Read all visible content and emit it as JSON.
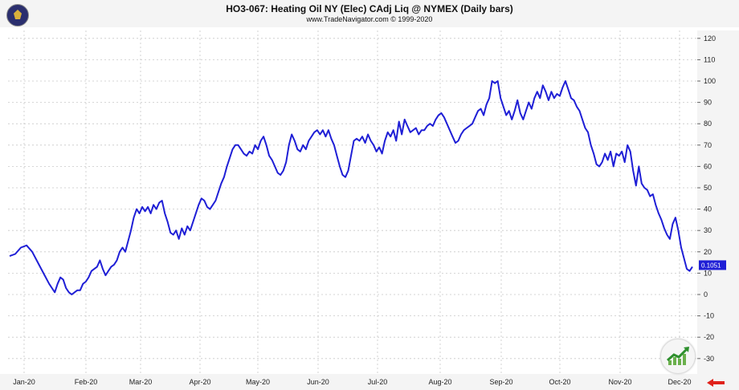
{
  "header": {
    "title": "HO3-067:  Heating Oil NY (Elec) CAdj Liq @ NYMEX  (Daily bars)",
    "subtitle": "www.TradeNavigator.com © 1999-2020"
  },
  "colors": {
    "line": "#1f1fd6",
    "badge_bg": "#1f1fd6",
    "grid": "#c8c8c8",
    "arrow": "#e0221b"
  },
  "icons": {
    "logo": "trade-navigator-logo-icon",
    "nav": "trending-up-chart-icon",
    "scroll": "left-arrow-icon"
  },
  "chart_data": {
    "type": "line",
    "title": "HO3-067:  Heating Oil NY (Elec) CAdj Liq @ NYMEX  (Daily bars)",
    "xlabel": "",
    "ylabel": "",
    "ylim": [
      -37,
      125
    ],
    "grid": true,
    "y_ticks": [
      120,
      110,
      100,
      90,
      80,
      70,
      60,
      50,
      40,
      30,
      20,
      10,
      0,
      -10,
      -20,
      -30
    ],
    "x_ticks": [
      "Jan-20",
      "Feb-20",
      "Mar-20",
      "Apr-20",
      "May-20",
      "Jun-20",
      "Jul-20",
      "Aug-20",
      "Sep-20",
      "Oct-20",
      "Nov-20",
      "Dec-20"
    ],
    "last_value_label": "0.1051",
    "series": [
      {
        "name": "",
        "points": [
          [
            0,
            18
          ],
          [
            2,
            19
          ],
          [
            4,
            22
          ],
          [
            6,
            23
          ],
          [
            8,
            20
          ],
          [
            10,
            15
          ],
          [
            12,
            10
          ],
          [
            14,
            5
          ],
          [
            15,
            3
          ],
          [
            16,
            1
          ],
          [
            17,
            5
          ],
          [
            18,
            8
          ],
          [
            19,
            7
          ],
          [
            20,
            3
          ],
          [
            21,
            1
          ],
          [
            22,
            0
          ],
          [
            23,
            1
          ],
          [
            24,
            2
          ],
          [
            25,
            2
          ],
          [
            26,
            5
          ],
          [
            27,
            6
          ],
          [
            28,
            8
          ],
          [
            29,
            11
          ],
          [
            30,
            12
          ],
          [
            31,
            13
          ],
          [
            32,
            16
          ],
          [
            33,
            12
          ],
          [
            34,
            9
          ],
          [
            35,
            11
          ],
          [
            36,
            13
          ],
          [
            37,
            14
          ],
          [
            38,
            16
          ],
          [
            39,
            20
          ],
          [
            40,
            22
          ],
          [
            41,
            20
          ],
          [
            42,
            25
          ],
          [
            43,
            30
          ],
          [
            44,
            36
          ],
          [
            45,
            40
          ],
          [
            46,
            38
          ],
          [
            47,
            41
          ],
          [
            48,
            39
          ],
          [
            49,
            41
          ],
          [
            50,
            38
          ],
          [
            51,
            42
          ],
          [
            52,
            40
          ],
          [
            53,
            43
          ],
          [
            54,
            44
          ],
          [
            55,
            38
          ],
          [
            56,
            34
          ],
          [
            57,
            29
          ],
          [
            58,
            28
          ],
          [
            59,
            30
          ],
          [
            60,
            26
          ],
          [
            61,
            31
          ],
          [
            62,
            28
          ],
          [
            63,
            32
          ],
          [
            64,
            30
          ],
          [
            65,
            34
          ],
          [
            66,
            38
          ],
          [
            67,
            42
          ],
          [
            68,
            45
          ],
          [
            69,
            44
          ],
          [
            70,
            41
          ],
          [
            71,
            40
          ],
          [
            72,
            42
          ],
          [
            73,
            44
          ],
          [
            74,
            48
          ],
          [
            75,
            52
          ],
          [
            76,
            55
          ],
          [
            77,
            60
          ],
          [
            78,
            64
          ],
          [
            79,
            68
          ],
          [
            80,
            70
          ],
          [
            81,
            70
          ],
          [
            82,
            68
          ],
          [
            83,
            66
          ],
          [
            84,
            65
          ],
          [
            85,
            67
          ],
          [
            86,
            66
          ],
          [
            87,
            70
          ],
          [
            88,
            68
          ],
          [
            89,
            72
          ],
          [
            90,
            74
          ],
          [
            91,
            70
          ],
          [
            92,
            65
          ],
          [
            93,
            63
          ],
          [
            94,
            60
          ],
          [
            95,
            57
          ],
          [
            96,
            56
          ],
          [
            97,
            58
          ],
          [
            98,
            62
          ],
          [
            99,
            70
          ],
          [
            100,
            75
          ],
          [
            101,
            72
          ],
          [
            102,
            68
          ],
          [
            103,
            67
          ],
          [
            104,
            70
          ],
          [
            105,
            68
          ],
          [
            106,
            72
          ],
          [
            107,
            74
          ],
          [
            108,
            76
          ],
          [
            109,
            77
          ],
          [
            110,
            75
          ],
          [
            111,
            77
          ],
          [
            112,
            74
          ],
          [
            113,
            77
          ],
          [
            114,
            73
          ],
          [
            115,
            70
          ],
          [
            116,
            65
          ],
          [
            117,
            60
          ],
          [
            118,
            56
          ],
          [
            119,
            55
          ],
          [
            120,
            58
          ],
          [
            121,
            65
          ],
          [
            122,
            72
          ],
          [
            123,
            73
          ],
          [
            124,
            72
          ],
          [
            125,
            74
          ],
          [
            126,
            71
          ],
          [
            127,
            75
          ],
          [
            128,
            72
          ],
          [
            129,
            70
          ],
          [
            130,
            67
          ],
          [
            131,
            69
          ],
          [
            132,
            66
          ],
          [
            133,
            72
          ],
          [
            134,
            76
          ],
          [
            135,
            74
          ],
          [
            136,
            77
          ],
          [
            137,
            72
          ],
          [
            138,
            81
          ],
          [
            139,
            75
          ],
          [
            140,
            82
          ],
          [
            141,
            79
          ],
          [
            142,
            76
          ],
          [
            143,
            77
          ],
          [
            144,
            78
          ],
          [
            145,
            75
          ],
          [
            146,
            77
          ],
          [
            147,
            77
          ],
          [
            148,
            79
          ],
          [
            149,
            80
          ],
          [
            150,
            79
          ],
          [
            151,
            82
          ],
          [
            152,
            84
          ],
          [
            153,
            85
          ],
          [
            154,
            83
          ],
          [
            155,
            80
          ],
          [
            156,
            77
          ],
          [
            157,
            74
          ],
          [
            158,
            71
          ],
          [
            159,
            72
          ],
          [
            160,
            75
          ],
          [
            161,
            77
          ],
          [
            162,
            78
          ],
          [
            163,
            79
          ],
          [
            164,
            80
          ],
          [
            165,
            83
          ],
          [
            166,
            86
          ],
          [
            167,
            87
          ],
          [
            168,
            84
          ],
          [
            169,
            89
          ],
          [
            170,
            92
          ],
          [
            171,
            100
          ],
          [
            172,
            99
          ],
          [
            173,
            100
          ],
          [
            174,
            92
          ],
          [
            175,
            88
          ],
          [
            176,
            84
          ],
          [
            177,
            86
          ],
          [
            178,
            82
          ],
          [
            179,
            86
          ],
          [
            180,
            91
          ],
          [
            181,
            85
          ],
          [
            182,
            82
          ],
          [
            183,
            86
          ],
          [
            184,
            90
          ],
          [
            185,
            87
          ],
          [
            186,
            92
          ],
          [
            187,
            95
          ],
          [
            188,
            92
          ],
          [
            189,
            98
          ],
          [
            190,
            95
          ],
          [
            191,
            91
          ],
          [
            192,
            95
          ],
          [
            193,
            92
          ],
          [
            194,
            94
          ],
          [
            195,
            93
          ],
          [
            196,
            97
          ],
          [
            197,
            100
          ],
          [
            198,
            96
          ],
          [
            199,
            92
          ],
          [
            200,
            91
          ],
          [
            201,
            88
          ],
          [
            202,
            86
          ],
          [
            203,
            82
          ],
          [
            204,
            78
          ],
          [
            205,
            76
          ],
          [
            206,
            70
          ],
          [
            207,
            66
          ],
          [
            208,
            61
          ],
          [
            209,
            60
          ],
          [
            210,
            62
          ],
          [
            211,
            66
          ],
          [
            212,
            63
          ],
          [
            213,
            67
          ],
          [
            214,
            60
          ],
          [
            215,
            66
          ],
          [
            216,
            65
          ],
          [
            217,
            67
          ],
          [
            218,
            62
          ],
          [
            219,
            70
          ],
          [
            220,
            67
          ],
          [
            221,
            58
          ],
          [
            222,
            51
          ],
          [
            223,
            60
          ],
          [
            224,
            52
          ],
          [
            225,
            50
          ],
          [
            226,
            49
          ],
          [
            227,
            46
          ],
          [
            228,
            47
          ],
          [
            229,
            42
          ],
          [
            230,
            38
          ],
          [
            231,
            35
          ],
          [
            232,
            31
          ],
          [
            233,
            28
          ],
          [
            234,
            26
          ],
          [
            235,
            33
          ],
          [
            236,
            36
          ],
          [
            237,
            30
          ],
          [
            238,
            22
          ],
          [
            239,
            17
          ],
          [
            240,
            12
          ],
          [
            241,
            11
          ],
          [
            242,
            13
          ]
        ]
      }
    ]
  }
}
